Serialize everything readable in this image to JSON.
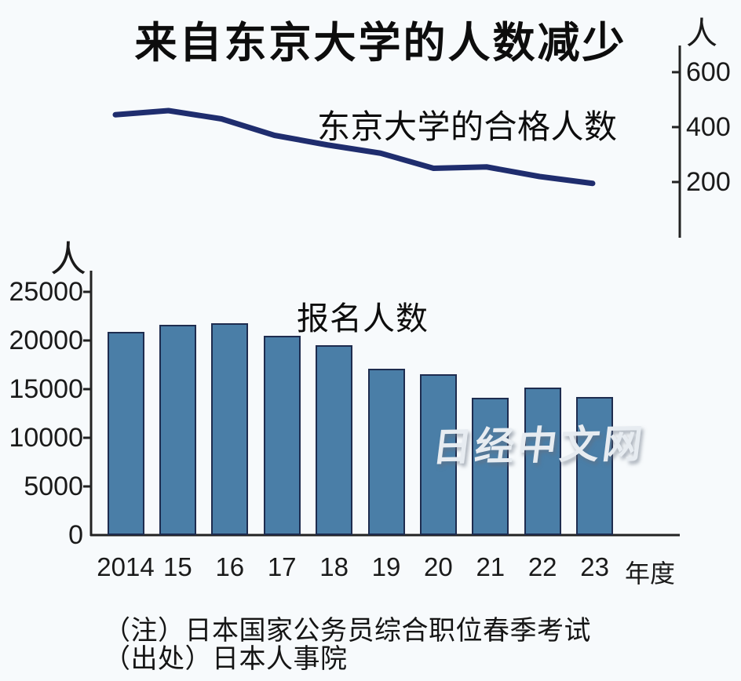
{
  "title": "来自东京大学的人数减少",
  "watermark": "日经中文网",
  "notes": [
    "（注）日本国家公务员综合职位春季考试",
    "（出处）日本人事院"
  ],
  "colors": {
    "background": "#f7fafc",
    "bar_fill": "#4a7ea7",
    "bar_border": "#1e2c4f",
    "line": "#1f2d6e",
    "axis": "#222222",
    "text": "#111111",
    "watermark": "#e7ecf1"
  },
  "chart_data": [
    {
      "type": "line",
      "title": "东京大学的合格人数",
      "unit_label": "人",
      "axis_side": "right",
      "categories": [
        "2014",
        "15",
        "16",
        "17",
        "18",
        "19",
        "20",
        "21",
        "22",
        "23"
      ],
      "values": [
        445,
        460,
        430,
        370,
        335,
        305,
        250,
        255,
        220,
        195
      ],
      "yticks": [
        600,
        400,
        200
      ],
      "ylim": [
        100,
        650
      ],
      "grid": false,
      "legend_position": "none"
    },
    {
      "type": "bar",
      "title": "报名人数",
      "unit_label": "人",
      "axis_side": "left",
      "xlabel": "年度",
      "categories": [
        "2014",
        "15",
        "16",
        "17",
        "18",
        "19",
        "20",
        "21",
        "22",
        "23"
      ],
      "values": [
        20900,
        21600,
        21800,
        20500,
        19500,
        17100,
        16500,
        14100,
        15200,
        14200
      ],
      "yticks": [
        25000,
        20000,
        15000,
        10000,
        5000,
        0
      ],
      "ylim": [
        0,
        26500
      ],
      "grid": false,
      "legend_position": "none"
    }
  ]
}
